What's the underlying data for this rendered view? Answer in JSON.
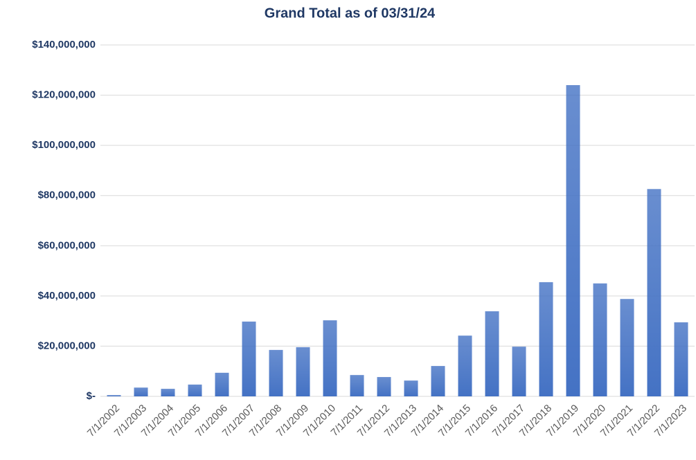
{
  "chart_data": {
    "type": "bar",
    "title": "Grand Total as of 03/31/24",
    "categories": [
      "7/1/2002",
      "7/1/2003",
      "7/1/2004",
      "7/1/2005",
      "7/1/2006",
      "7/1/2007",
      "7/1/2008",
      "7/1/2009",
      "7/1/2010",
      "7/1/2011",
      "7/1/2012",
      "7/1/2013",
      "7/1/2014",
      "7/1/2015",
      "7/1/2016",
      "7/1/2017",
      "7/1/2018",
      "7/1/2019",
      "7/1/2020",
      "7/1/2021",
      "7/1/2022",
      "7/1/2023"
    ],
    "values": [
      500000,
      3500000,
      3000000,
      4700000,
      9400000,
      29800000,
      18500000,
      19600000,
      30300000,
      8500000,
      7700000,
      6300000,
      12100000,
      24200000,
      33900000,
      19800000,
      45500000,
      124000000,
      45000000,
      38800000,
      82600000,
      29500000
    ],
    "color": "#4472c4",
    "ylim": [
      0,
      140000000
    ],
    "yticks": [
      {
        "value": 0,
        "label": "$-"
      },
      {
        "value": 20000000,
        "label": "$20,000,000"
      },
      {
        "value": 40000000,
        "label": "$40,000,000"
      },
      {
        "value": 60000000,
        "label": "$60,000,000"
      },
      {
        "value": 80000000,
        "label": "$80,000,000"
      },
      {
        "value": 100000000,
        "label": "$100,000,000"
      },
      {
        "value": 120000000,
        "label": "$120,000,000"
      },
      {
        "value": 140000000,
        "label": "$140,000,000"
      }
    ],
    "grid": true
  }
}
